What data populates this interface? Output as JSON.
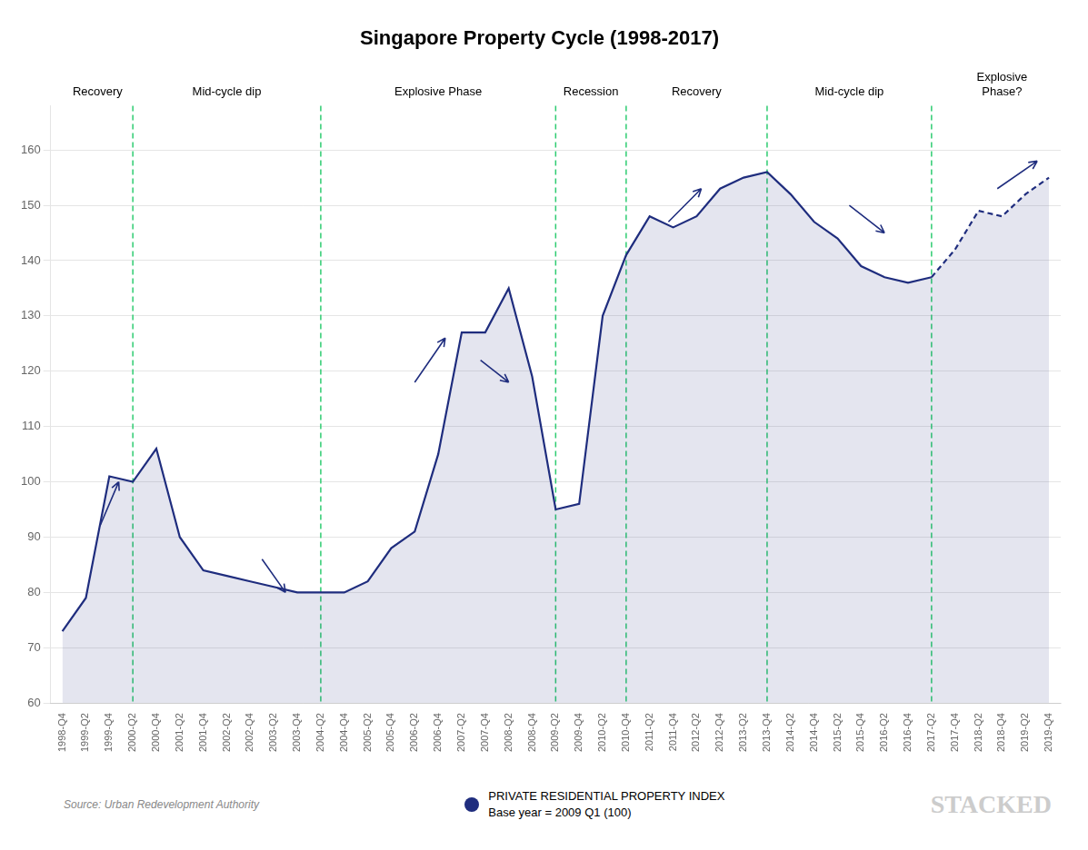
{
  "chart_data": {
    "type": "line",
    "title": "Singapore Property Cycle (1998-2017)",
    "categories": [
      "1998-Q4",
      "1999-Q2",
      "1999-Q4",
      "2000-Q2",
      "2000-Q4",
      "2001-Q2",
      "2001-Q4",
      "2002-Q2",
      "2002-Q4",
      "2003-Q2",
      "2003-Q4",
      "2004-Q2",
      "2004-Q4",
      "2005-Q2",
      "2005-Q4",
      "2006-Q2",
      "2006-Q4",
      "2007-Q2",
      "2007-Q4",
      "2008-Q2",
      "2008-Q4",
      "2009-Q2",
      "2009-Q4",
      "2010-Q2",
      "2010-Q4",
      "2011-Q2",
      "2011-Q4",
      "2012-Q2",
      "2012-Q4",
      "2013-Q2",
      "2013-Q4",
      "2014-Q2",
      "2014-Q4",
      "2015-Q2",
      "2015-Q4",
      "2016-Q2",
      "2016-Q4",
      "2017-Q2",
      "2017-Q4",
      "2018-Q2",
      "2018-Q4",
      "2019-Q2",
      "2019-Q4"
    ],
    "series": [
      {
        "name": "PRIVATE RESIDENTIAL PROPERTY INDEX",
        "subtitle": "Base year = 2009 Q1 (100)",
        "color": "#1f2d7e",
        "line_style": "solid",
        "projection_from": "2017-Q2",
        "values": [
          73,
          79,
          101,
          100,
          106,
          90,
          84,
          83,
          82,
          81,
          80,
          80,
          80,
          82,
          88,
          91,
          105,
          127,
          127,
          135,
          119,
          95,
          96,
          130,
          141,
          148,
          146,
          148,
          153,
          155,
          156,
          152,
          147,
          144,
          139,
          137,
          136,
          137,
          142,
          149,
          148,
          152,
          155
        ]
      }
    ],
    "ylim": [
      60,
      168
    ],
    "yticks": [
      60,
      70,
      80,
      90,
      100,
      110,
      120,
      130,
      140,
      150,
      160
    ],
    "grid": true,
    "vlines": {
      "at": [
        "2000-Q2",
        "2004-Q2",
        "2009-Q2",
        "2010-Q4",
        "2013-Q4",
        "2017-Q2"
      ],
      "color": "#2ecc71",
      "line_style": "dashed"
    },
    "phase_labels": [
      {
        "text": "Recovery",
        "x": 1.5
      },
      {
        "text": "Mid-cycle dip",
        "x": 7.0
      },
      {
        "text": "Explosive Phase",
        "x": 16.0
      },
      {
        "text": "Recession",
        "x": 22.5
      },
      {
        "text": "Recovery",
        "x": 27.0
      },
      {
        "text": "Mid-cycle dip",
        "x": 33.5
      },
      {
        "text": "Explosive\nPhase?",
        "x": 40.0
      }
    ],
    "arrows": [
      {
        "x1": 1.6,
        "y1": 92,
        "x2": 2.4,
        "y2": 100
      },
      {
        "x1": 8.5,
        "y1": 86,
        "x2": 9.5,
        "y2": 80
      },
      {
        "x1": 15.0,
        "y1": 118,
        "x2": 16.3,
        "y2": 126
      },
      {
        "x1": 17.8,
        "y1": 122,
        "x2": 19.0,
        "y2": 118
      },
      {
        "x1": 25.8,
        "y1": 147,
        "x2": 27.2,
        "y2": 153
      },
      {
        "x1": 33.5,
        "y1": 150,
        "x2": 35.0,
        "y2": 145
      },
      {
        "x1": 39.8,
        "y1": 153,
        "x2": 41.5,
        "y2": 158
      }
    ],
    "source": "Source: Urban Redevelopment Authority",
    "branding": "STACKED"
  }
}
